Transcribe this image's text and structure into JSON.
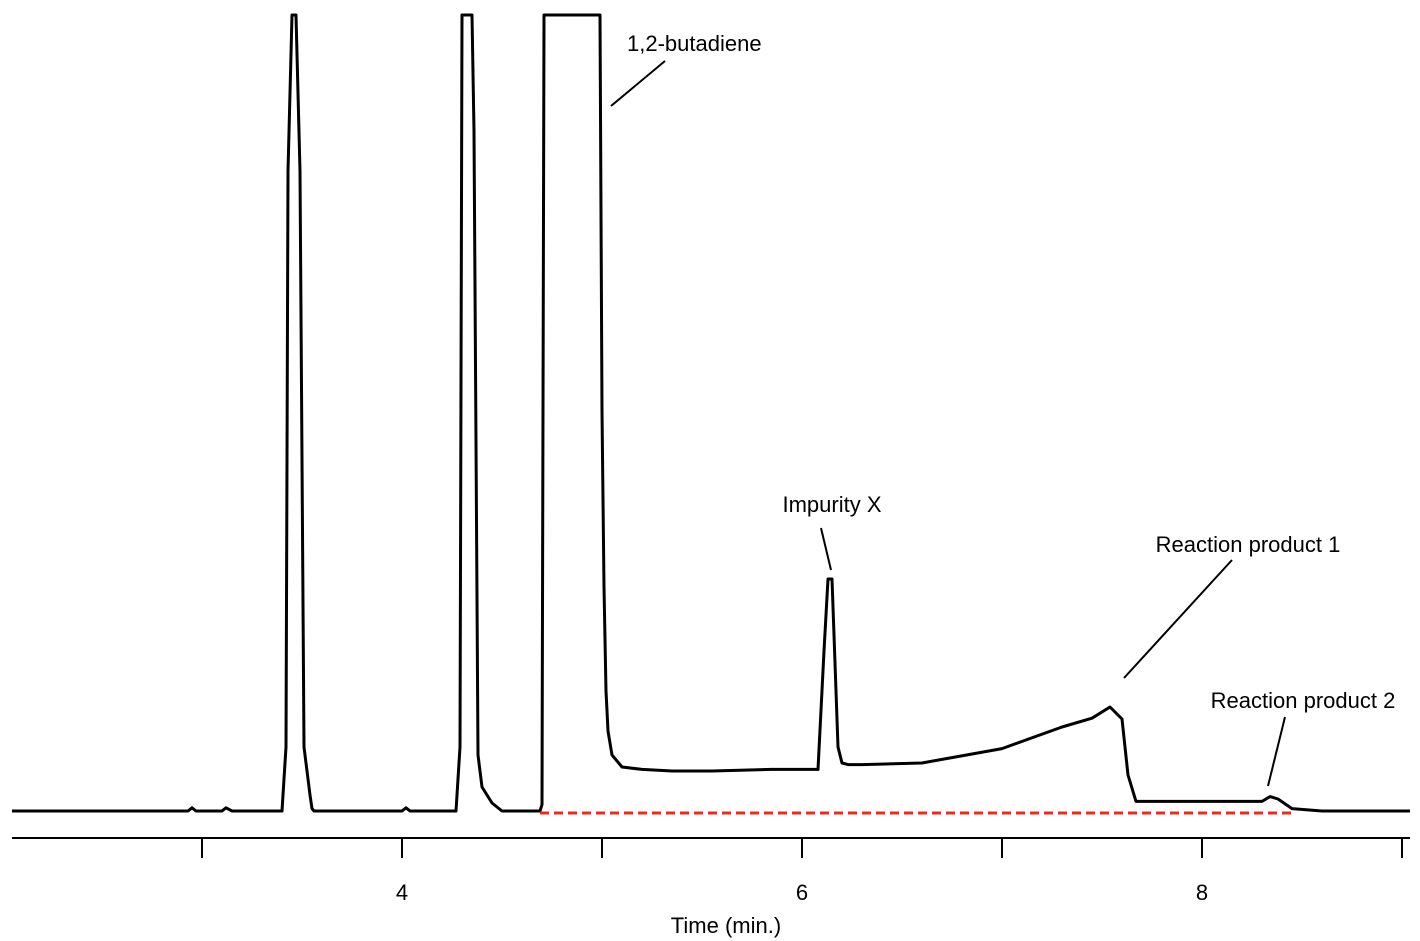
{
  "chart_data": {
    "type": "line",
    "xlabel": "Time (min.)",
    "ylabel": "",
    "xlim": [
      2.05,
      9.04
    ],
    "ylim": [
      0,
      100
    ],
    "grid": false,
    "x_ticks_major": [
      4,
      6,
      8
    ],
    "x_ticks_minor": [
      3,
      5,
      7,
      9
    ],
    "series": [
      {
        "color": "#000000",
        "x": [
          2.05,
          2.93,
          2.95,
          2.97,
          3.1,
          3.12,
          3.15,
          3.4,
          3.42,
          3.43,
          3.45,
          3.47,
          3.49,
          3.51,
          3.52,
          3.54,
          3.55,
          3.56,
          3.58,
          3.63,
          4.0,
          4.02,
          4.04,
          4.27,
          4.29,
          4.3,
          4.31,
          4.35,
          4.36,
          4.38,
          4.4,
          4.45,
          4.5,
          4.55,
          4.69,
          4.7,
          4.71,
          4.99,
          5.0,
          5.01,
          5.02,
          5.03,
          5.05,
          5.1,
          5.2,
          5.35,
          5.55,
          5.85,
          6.08,
          6.11,
          6.13,
          6.15,
          6.16,
          6.18,
          6.2,
          6.23,
          6.3,
          6.6,
          7.0,
          7.3,
          7.45,
          7.54,
          7.6,
          7.63,
          7.67,
          7.72,
          7.75,
          8.23,
          8.3,
          8.34,
          8.38,
          8.45,
          8.6,
          9.04
        ],
        "y": [
          0,
          0,
          0.4,
          0,
          0,
          0.4,
          0,
          0,
          8,
          80,
          99.5,
          99.5,
          80,
          8,
          6,
          2,
          0.3,
          0,
          0,
          0,
          0,
          0.4,
          0,
          0,
          8,
          99.5,
          99.5,
          99.5,
          85,
          7,
          3,
          1,
          0,
          0,
          0,
          0.8,
          99.5,
          99.5,
          50,
          28,
          15,
          10,
          7,
          5.5,
          5.2,
          5,
          5,
          5.2,
          5.2,
          20,
          29,
          29,
          22,
          8,
          6,
          5.8,
          5.8,
          6,
          7.8,
          10.5,
          11.6,
          13,
          11.5,
          4.5,
          1.2,
          1.2,
          1.2,
          1.2,
          1.2,
          1.8,
          1.5,
          0.3,
          0,
          0
        ]
      },
      {
        "color": "#e03020",
        "style": "dashed",
        "x": [
          4.69,
          8.45
        ],
        "y": [
          0,
          0
        ]
      }
    ],
    "annotations": [
      {
        "text": "1,2-butadiene"
      },
      {
        "text": "Impurity X"
      },
      {
        "text": "Reaction product 1"
      },
      {
        "text": "Reaction product 2"
      }
    ]
  }
}
